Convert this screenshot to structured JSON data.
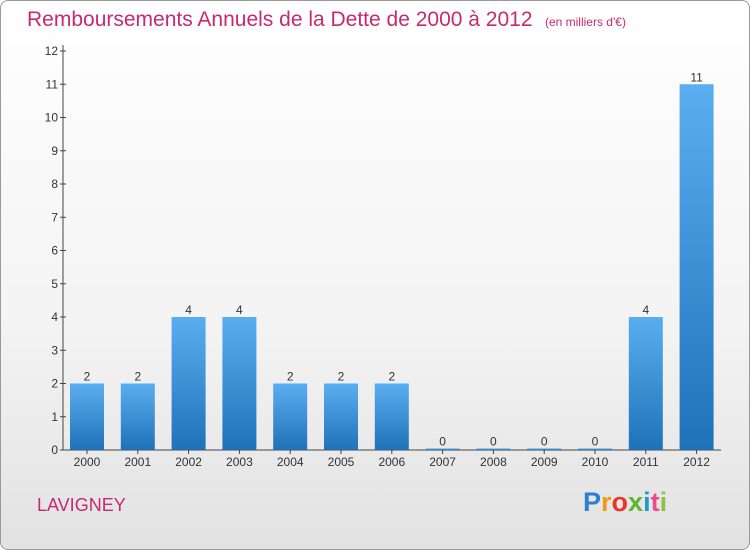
{
  "header": {
    "title": "Remboursements Annuels de la Dette de 2000 à 2012",
    "unit": "(en milliers d'€)"
  },
  "footer": {
    "commune": "LAVIGNEY",
    "brand_letters": [
      "P",
      "r",
      "o",
      "x",
      "i",
      "t",
      "i"
    ]
  },
  "colors": {
    "title": "#c72a70",
    "bar_top": "#5aaef0",
    "bar_bottom": "#1f72b8"
  },
  "chart_data": {
    "type": "bar",
    "title": "Remboursements Annuels de la Dette de 2000 à 2012",
    "subtitle": "(en milliers d'€)",
    "categories": [
      "2000",
      "2001",
      "2002",
      "2003",
      "2004",
      "2005",
      "2006",
      "2007",
      "2008",
      "2009",
      "2010",
      "2011",
      "2012"
    ],
    "values": [
      2,
      2,
      4,
      4,
      2,
      2,
      2,
      0,
      0,
      0,
      0,
      4,
      11
    ],
    "value_labels": [
      "2",
      "2",
      "4",
      "4",
      "2",
      "2",
      "2",
      "0",
      "0",
      "0",
      "0",
      "4",
      "11"
    ],
    "yticks": [
      "0",
      "1",
      "2",
      "3",
      "4",
      "5",
      "6",
      "7",
      "8",
      "9",
      "10",
      "11",
      "12"
    ],
    "ylim": [
      0,
      12
    ],
    "grid": false,
    "legend": "none"
  }
}
